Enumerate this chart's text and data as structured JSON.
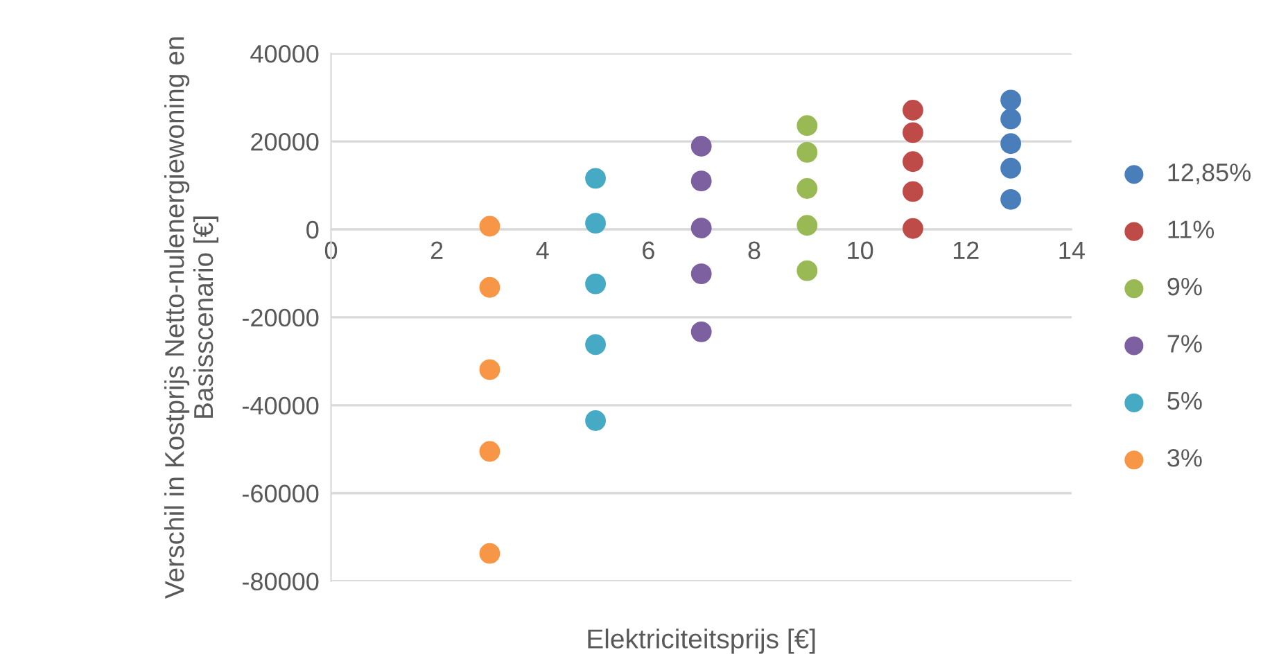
{
  "chart_data": {
    "type": "scatter",
    "xlabel": "Elektriciteitsprijs [€]",
    "ylabel": "Verschil in Kostprijs Netto-nulenergiewoning en Basisscenario [€]",
    "xlim": [
      0,
      14
    ],
    "xticks": [
      0,
      2,
      4,
      6,
      8,
      10,
      12,
      14
    ],
    "ylim": [
      -80000,
      40000
    ],
    "yticks": [
      -80000,
      -60000,
      -40000,
      -20000,
      0,
      20000,
      40000
    ],
    "grid": "y",
    "legend": "right",
    "marker": "circle",
    "series": [
      {
        "name": "12,85%",
        "color": "#4a7ebb",
        "x": [
          12.85,
          12.85,
          12.85,
          12.85,
          12.85
        ],
        "values": [
          29400,
          25100,
          19500,
          13900,
          6800
        ]
      },
      {
        "name": "11%",
        "color": "#be4b48",
        "x": [
          11,
          11,
          11,
          11,
          11
        ],
        "values": [
          27100,
          22000,
          15400,
          8600,
          200
        ]
      },
      {
        "name": "9%",
        "color": "#98b954",
        "x": [
          9,
          9,
          9,
          9,
          9
        ],
        "values": [
          23600,
          17500,
          9300,
          900,
          -9400
        ]
      },
      {
        "name": "7%",
        "color": "#7d60a0",
        "x": [
          7,
          7,
          7,
          7,
          7
        ],
        "values": [
          18900,
          11000,
          300,
          -10100,
          -23300
        ]
      },
      {
        "name": "5%",
        "color": "#46aac5",
        "x": [
          5,
          5,
          5,
          5,
          5
        ],
        "values": [
          11600,
          1400,
          -12400,
          -26200,
          -43500
        ]
      },
      {
        "name": "3%",
        "color": "#f79646",
        "x": [
          3,
          3,
          3,
          3,
          3
        ],
        "values": [
          700,
          -13200,
          -31900,
          -50500,
          -73700
        ]
      }
    ]
  }
}
